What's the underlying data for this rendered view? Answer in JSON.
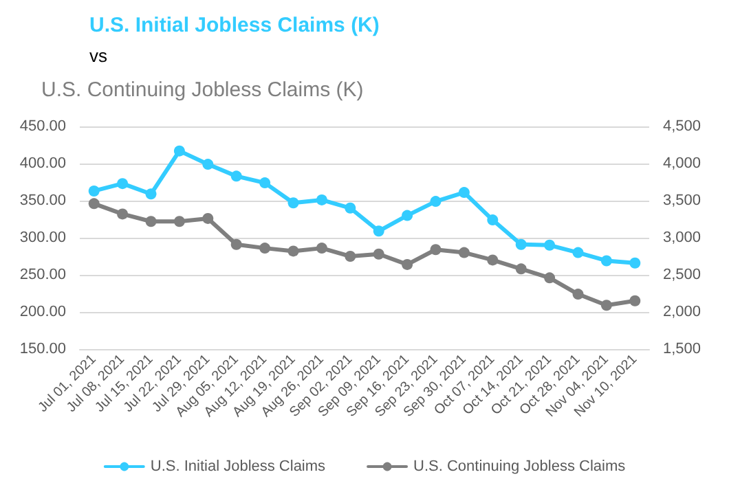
{
  "chart_data": {
    "type": "line",
    "title": "U.S. Initial Jobless Claims (K)",
    "subtitle": "vs",
    "annotations": [
      "U.S. Continuing Jobless Claims (K)"
    ],
    "categories": [
      "Jul 01, 2021",
      "Jul 08, 2021",
      "Jul 15, 2021",
      "Jul 22, 2021",
      "Jul 29, 2021",
      "Aug 05, 2021",
      "Aug 12, 2021",
      "Aug 19, 2021",
      "Aug 26, 2021",
      "Sep 02, 2021",
      "Sep 09, 2021",
      "Sep 16, 2021",
      "Sep 23, 2021",
      "Sep 30, 2021",
      "Oct 07, 2021",
      "Oct 14, 2021",
      "Oct 21, 2021",
      "Oct 28, 2021",
      "Nov 04, 2021",
      "Nov 10, 2021"
    ],
    "series": [
      {
        "name": "U.S. Initial Jobless Claims",
        "color": "#33ccff",
        "values": [
          363,
          373,
          359,
          417,
          399,
          383,
          374,
          347,
          351,
          340,
          309,
          330,
          349,
          361,
          324,
          291,
          290,
          280,
          269,
          266
        ]
      },
      {
        "name": "U.S. Continuing Jobless Claims",
        "color": "#7f7f7f",
        "axis": "y2",
        "values": [
          3460,
          3320,
          3220,
          3220,
          3260,
          2910,
          2860,
          2820,
          2860,
          2750,
          2780,
          2640,
          2840,
          2800,
          2700,
          2580,
          2460,
          2240,
          2090,
          2150
        ]
      }
    ],
    "ylim": [
      150,
      450
    ],
    "yticks": [
      {
        "value": 150,
        "label": "150.00"
      },
      {
        "value": 200,
        "label": "200.00"
      },
      {
        "value": 250,
        "label": "250.00"
      },
      {
        "value": 300,
        "label": "300.00"
      },
      {
        "value": 350,
        "label": "350.00"
      },
      {
        "value": 400,
        "label": "400.00"
      },
      {
        "value": 450,
        "label": "450.00"
      }
    ],
    "y2lim": [
      1500,
      4500
    ],
    "y2ticks": [
      {
        "value": 1500,
        "label": "1,500"
      },
      {
        "value": 2000,
        "label": "2,000"
      },
      {
        "value": 2500,
        "label": "2,500"
      },
      {
        "value": 3000,
        "label": "3,000"
      },
      {
        "value": 3500,
        "label": "3,500"
      },
      {
        "value": 4000,
        "label": "4,000"
      },
      {
        "value": 4500,
        "label": "4,500"
      }
    ],
    "grid": "y",
    "legend": "bottom",
    "marker": "circle",
    "line_style": "solid"
  }
}
